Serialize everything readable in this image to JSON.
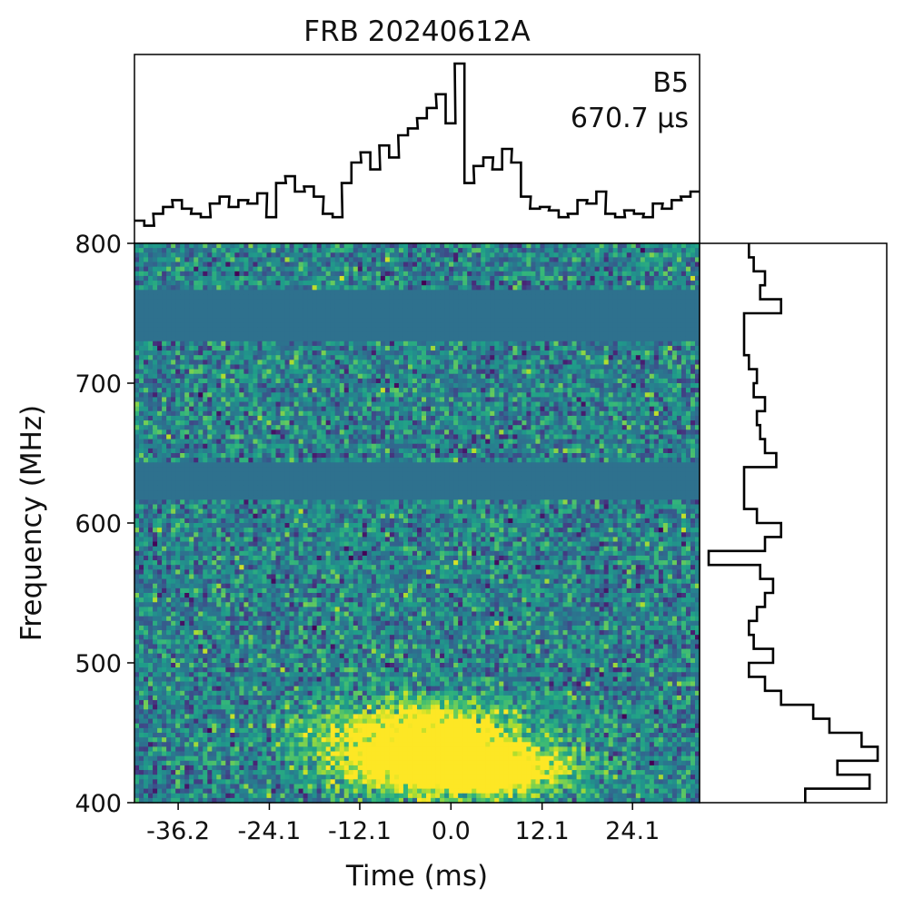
{
  "chart_data": {
    "type": "heatmap",
    "title": "FRB 20240612A",
    "xlabel": "Time (ms)",
    "ylabel": "Frequency (MHz)",
    "annotation": {
      "burst": "B5",
      "time_resolution": "670.7 μs"
    },
    "x_ticks": [
      {
        "label": "-36.2",
        "value": -36.2
      },
      {
        "label": "-24.1",
        "value": -24.1
      },
      {
        "label": "-12.1",
        "value": -12.1
      },
      {
        "label": "0.0",
        "value": 0.0
      },
      {
        "label": "12.1",
        "value": 12.1
      },
      {
        "label": "24.1",
        "value": 24.1
      }
    ],
    "y_ticks": [
      {
        "label": "400",
        "value": 400
      },
      {
        "label": "500",
        "value": 500
      },
      {
        "label": "600",
        "value": 600
      },
      {
        "label": "700",
        "value": 700
      },
      {
        "label": "800",
        "value": 800
      }
    ],
    "xlim": [
      -42.0,
      33.0
    ],
    "ylim": [
      400,
      800
    ],
    "colormap": "viridis",
    "masked_bands_mhz": [
      [
        729,
        768
      ],
      [
        617,
        642
      ]
    ],
    "burst_regions": [
      {
        "t_center": -4.0,
        "f_center": 445,
        "t_width": 9.0,
        "f_width": 17,
        "amplitude": 1.0
      },
      {
        "t_center": 2.0,
        "f_center": 422,
        "t_width": 8.5,
        "f_width": 11,
        "amplitude": 1.1
      }
    ],
    "time_series": {
      "name": "time profile",
      "t": [
        -42.0,
        -40.7,
        -39.5,
        -38.2,
        -37.0,
        -35.7,
        -34.5,
        -33.2,
        -32.0,
        -30.7,
        -29.5,
        -28.2,
        -27.0,
        -25.7,
        -24.5,
        -23.2,
        -22.0,
        -20.7,
        -19.5,
        -18.2,
        -17.0,
        -15.7,
        -14.5,
        -13.2,
        -12.0,
        -10.7,
        -9.5,
        -8.2,
        -7.0,
        -5.7,
        -4.5,
        -3.2,
        -2.0,
        -0.7,
        0.5,
        1.8,
        3.0,
        4.3,
        5.5,
        6.8,
        8.0,
        9.3,
        10.5,
        11.8,
        13.0,
        14.3,
        15.5,
        16.8,
        18.0,
        19.3,
        20.5,
        21.8,
        23.0,
        24.3,
        25.5,
        26.8,
        28.0,
        29.3,
        30.5,
        31.8
      ],
      "values": [
        0.08,
        0.05,
        0.12,
        0.16,
        0.2,
        0.15,
        0.12,
        0.1,
        0.18,
        0.22,
        0.16,
        0.2,
        0.18,
        0.24,
        0.1,
        0.3,
        0.34,
        0.25,
        0.28,
        0.22,
        0.12,
        0.1,
        0.3,
        0.42,
        0.48,
        0.38,
        0.52,
        0.45,
        0.58,
        0.62,
        0.68,
        0.74,
        0.82,
        0.65,
        1.0,
        0.3,
        0.4,
        0.45,
        0.38,
        0.5,
        0.42,
        0.22,
        0.15,
        0.16,
        0.14,
        0.1,
        0.12,
        0.2,
        0.18,
        0.25,
        0.12,
        0.1,
        0.14,
        0.12,
        0.1,
        0.18,
        0.15,
        0.2,
        0.22,
        0.25
      ]
    },
    "spectrum": {
      "name": "spectrum",
      "f": [
        800,
        790,
        780,
        770,
        760,
        750,
        740,
        730,
        720,
        710,
        700,
        690,
        680,
        670,
        660,
        650,
        640,
        630,
        620,
        610,
        600,
        590,
        580,
        570,
        560,
        550,
        540,
        530,
        520,
        510,
        500,
        490,
        480,
        470,
        460,
        450,
        440,
        430,
        420,
        410,
        400
      ],
      "values": [
        0.05,
        0.08,
        0.15,
        0.12,
        0.25,
        0.02,
        0.02,
        0.02,
        0.05,
        0.1,
        0.08,
        0.15,
        0.1,
        0.12,
        0.15,
        0.22,
        0.02,
        0.02,
        0.02,
        0.1,
        0.25,
        0.15,
        -0.2,
        0.12,
        0.2,
        0.15,
        0.1,
        0.05,
        0.08,
        0.2,
        0.05,
        0.15,
        0.25,
        0.45,
        0.55,
        0.75,
        0.85,
        0.6,
        0.8,
        0.4,
        0.05
      ]
    }
  }
}
